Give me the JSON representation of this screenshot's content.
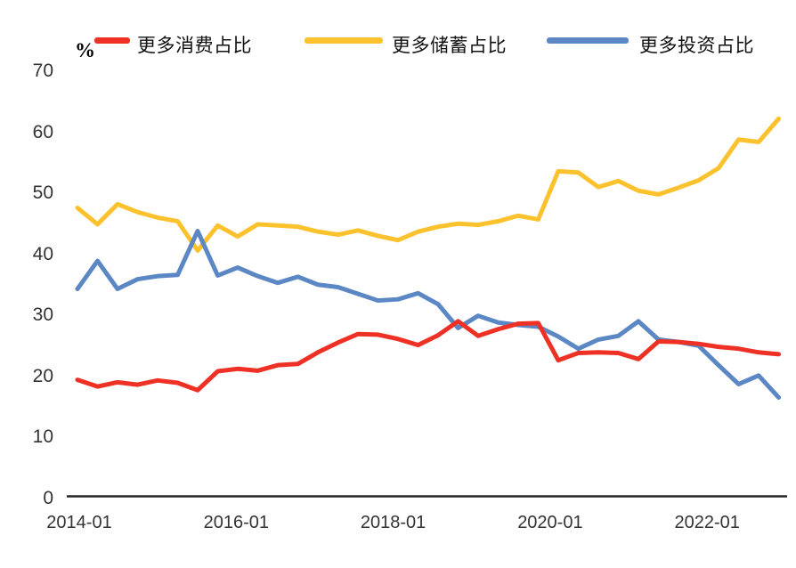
{
  "chart": {
    "y_axis_unit": "%",
    "y_ticks": [
      0,
      10,
      20,
      30,
      40,
      50,
      60,
      70
    ],
    "x_tick_labels": [
      "2014-01",
      "2016-01",
      "2018-01",
      "2020-01",
      "2022-01"
    ]
  },
  "chart_data": {
    "type": "line",
    "title": "",
    "xlabel": "",
    "ylabel": "%",
    "ylim": [
      0,
      70
    ],
    "grid": false,
    "legend_position": "top",
    "x": [
      "2014-01",
      "2014-04",
      "2014-07",
      "2014-10",
      "2015-01",
      "2015-04",
      "2015-07",
      "2015-10",
      "2016-01",
      "2016-04",
      "2016-07",
      "2016-10",
      "2017-01",
      "2017-04",
      "2017-07",
      "2017-10",
      "2018-01",
      "2018-04",
      "2018-07",
      "2018-10",
      "2019-01",
      "2019-04",
      "2019-07",
      "2019-10",
      "2020-01",
      "2020-04",
      "2020-07",
      "2020-10",
      "2021-01",
      "2021-04",
      "2021-07",
      "2021-10",
      "2022-01",
      "2022-04",
      "2022-07",
      "2022-10"
    ],
    "series": [
      {
        "name": "更多消费占比",
        "color": "#ee3124",
        "values": [
          19.4,
          18.3,
          19.0,
          18.6,
          19.3,
          18.9,
          17.7,
          20.8,
          21.2,
          20.9,
          21.8,
          22.0,
          23.9,
          25.5,
          26.9,
          26.8,
          26.1,
          25.1,
          26.7,
          29.0,
          26.6,
          27.7,
          28.6,
          28.7,
          22.6,
          23.8,
          23.9,
          23.8,
          22.8,
          25.7,
          25.6,
          25.3,
          24.8,
          24.5,
          23.9,
          23.6
        ]
      },
      {
        "name": "更多储蓄占比",
        "color": "#fcc22d",
        "values": [
          47.6,
          44.9,
          48.2,
          46.9,
          46.0,
          45.4,
          40.6,
          44.7,
          42.9,
          44.9,
          44.7,
          44.5,
          43.7,
          43.2,
          43.9,
          43.0,
          42.3,
          43.7,
          44.5,
          45.0,
          44.8,
          45.4,
          46.3,
          45.7,
          53.6,
          53.4,
          51.0,
          52.0,
          50.4,
          49.8,
          50.9,
          52.1,
          54.1,
          58.8,
          58.4,
          62.2
        ]
      },
      {
        "name": "更多投资占比",
        "color": "#5b87c5",
        "values": [
          34.3,
          38.9,
          34.3,
          35.9,
          36.4,
          36.6,
          43.8,
          36.5,
          37.8,
          36.4,
          35.3,
          36.3,
          35.0,
          34.6,
          33.5,
          32.4,
          32.6,
          33.6,
          31.8,
          27.9,
          29.9,
          28.8,
          28.4,
          28.1,
          26.5,
          24.5,
          26.0,
          26.6,
          29.0,
          26.0,
          25.6,
          25.0,
          21.8,
          18.7,
          20.1,
          16.5
        ]
      }
    ]
  }
}
